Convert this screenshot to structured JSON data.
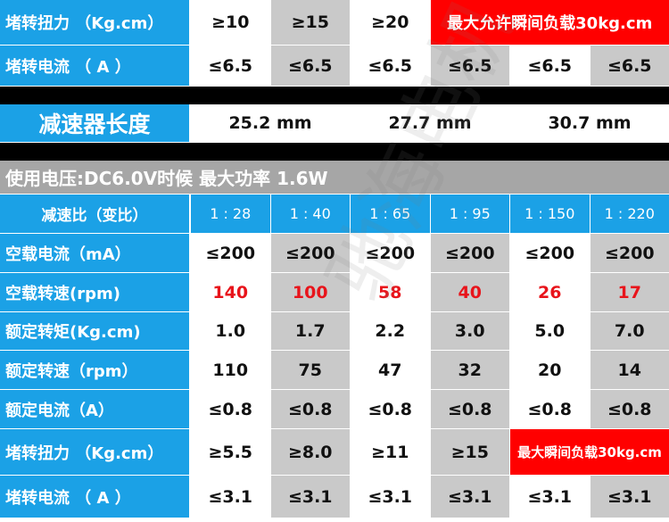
{
  "stall_spec": {
    "rows": [
      {
        "label": "堵转扭力 （Kg.cm）",
        "cells": [
          "≥10",
          "≥15",
          "≥20"
        ],
        "note": "最大允许瞬间负载30kg.cm"
      },
      {
        "label": "堵转电流 （ A ）",
        "cells": [
          "≤6.5",
          "≤6.5",
          "≤6.5",
          "≤6.5",
          "≤6.5",
          "≤6.5"
        ]
      }
    ]
  },
  "gearbox_length": {
    "label": "减速器长度",
    "cells": [
      "25.2 mm",
      "27.7 mm",
      "30.7 mm"
    ]
  },
  "spec_table": {
    "title": "使用电压:DC6.0V时候 最大功率  1.6W",
    "ratio_row": {
      "label": "减速比（变比）",
      "cells": [
        "1 : 28",
        "1 : 40",
        "1 : 65",
        "1 : 95",
        "1 : 150",
        "1 : 220"
      ]
    },
    "rows": [
      {
        "label": "空载电流（mA）",
        "cells": [
          "≤200",
          "≤200",
          "≤200",
          "≤200",
          "≤200",
          "≤200"
        ]
      },
      {
        "label": "空载转速(rpm)",
        "cells": [
          "140",
          "100",
          "58",
          "40",
          "26",
          "17"
        ],
        "value_color": "#e8141b"
      },
      {
        "label": "额定转矩(Kg.cm)",
        "cells": [
          "1.0",
          "1.7",
          "2.2",
          "3.0",
          "5.0",
          "7.0"
        ]
      },
      {
        "label": "额定转速（rpm）",
        "cells": [
          "110",
          "75",
          "47",
          "32",
          "20",
          "14"
        ]
      },
      {
        "label": "额定电流（A）",
        "cells": [
          "≤0.8",
          "≤0.8",
          "≤0.8",
          "≤0.8",
          "≤0.8",
          "≤0.8"
        ]
      },
      {
        "label": "堵转扭力 （Kg.cm）",
        "cells": [
          "≥5.5",
          "≥8.0",
          "≥11",
          "≥15"
        ],
        "note": "最大瞬间负载30kg.cm"
      },
      {
        "label": "堵转电流 （ A ）",
        "cells": [
          "≤3.1",
          "≤3.1",
          "≤3.1",
          "≤3.1",
          "≤3.1",
          "≤3.1"
        ]
      }
    ]
  },
  "watermark": "驰海电机"
}
